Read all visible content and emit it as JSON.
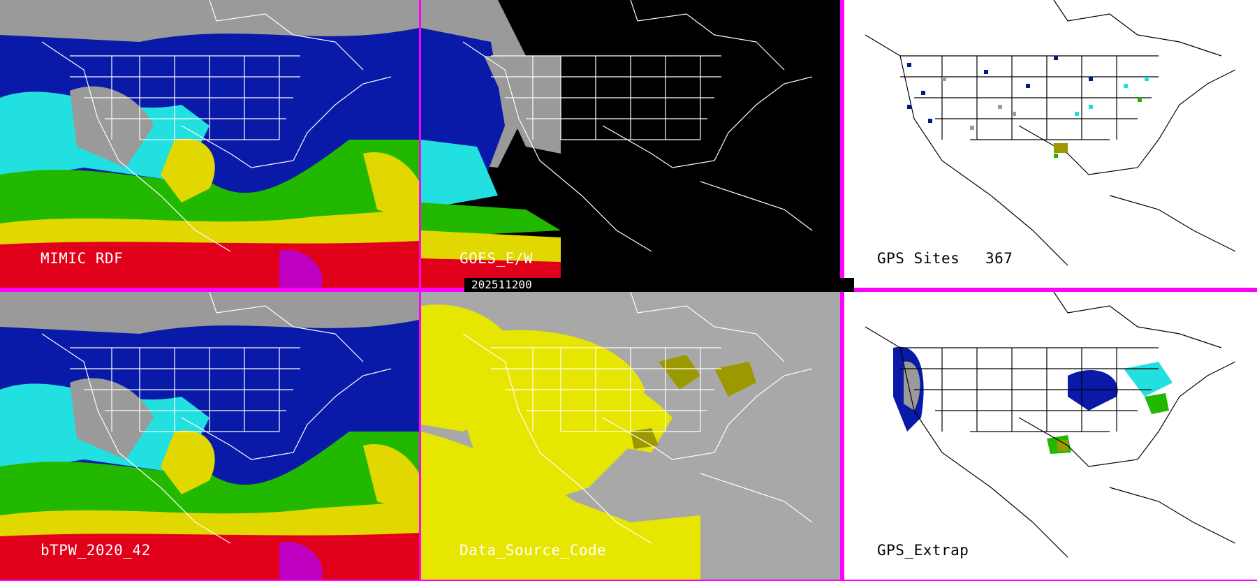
{
  "colors": {
    "border": "#ff00ff",
    "tpw_red": "#e0001a",
    "tpw_yellow": "#e0d800",
    "tpw_green": "#22b800",
    "tpw_cyan": "#22e0e0",
    "tpw_blue": "#0a1aa8",
    "tpw_gray": "#9a9a9a",
    "source_yellow": "#e6e600",
    "source_olive": "#9a9a00",
    "source_gray": "#a8a8a8",
    "gps_navy": "#001a80"
  },
  "icons": {
    "panel_map": "north-america-map-icon",
    "coastline": "coastline-outline-icon"
  },
  "timestamp": "202511200",
  "panels": [
    {
      "id": "mimic-rdf",
      "label": "MIMIC RDF",
      "style": "tpw"
    },
    {
      "id": "goes-ew",
      "label": "GOES_E/W",
      "style": "goes"
    },
    {
      "id": "gps-sites",
      "label": "GPS Sites",
      "count": "367",
      "style": "gps-sites"
    },
    {
      "id": "btpw",
      "label": "bTPW_2020_42",
      "style": "tpw"
    },
    {
      "id": "data-source-code",
      "label": "Data_Source_Code",
      "style": "source"
    },
    {
      "id": "gps-extrap",
      "label": "GPS_Extrap",
      "style": "gps-extrap"
    }
  ]
}
